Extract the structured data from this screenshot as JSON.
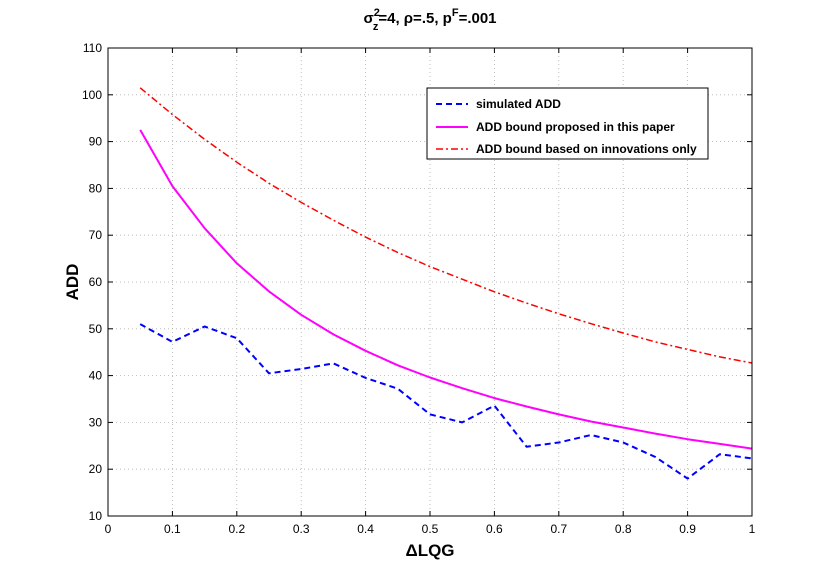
{
  "chart_data": {
    "type": "line",
    "title_parts": {
      "sym": "σ",
      "sup1": "2",
      "sub1": "z",
      "rest1": "=4, ρ=.5, p",
      "sup2": "F",
      "rest2": "=.001"
    },
    "xlabel": "ΔLQG",
    "ylabel": "ADD",
    "xlim": [
      0,
      1
    ],
    "ylim": [
      10,
      110
    ],
    "xticks": [
      "0",
      "0.1",
      "0.2",
      "0.3",
      "0.4",
      "0.5",
      "0.6",
      "0.7",
      "0.8",
      "0.9",
      "1"
    ],
    "yticks": [
      "10",
      "20",
      "30",
      "40",
      "50",
      "60",
      "70",
      "80",
      "90",
      "100",
      "110"
    ],
    "grid": true,
    "legend_position": "top-right",
    "x": [
      0.05,
      0.1,
      0.15,
      0.2,
      0.25,
      0.3,
      0.35,
      0.4,
      0.45,
      0.5,
      0.55,
      0.6,
      0.65,
      0.7,
      0.75,
      0.8,
      0.85,
      0.9,
      0.95,
      1.0
    ],
    "series": [
      {
        "name": "simulated ADD",
        "color": "#0000ff",
        "style": "dashed",
        "values": [
          51,
          47.2,
          50.5,
          48,
          40.5,
          41.4,
          42.6,
          39.5,
          37.2,
          31.7,
          30.0,
          33.6,
          24.8,
          25.7,
          27.3,
          25.7,
          22.6,
          18.0,
          23.2,
          22.3
        ]
      },
      {
        "name": "ADD bound proposed in this paper",
        "color": "#ff00ff",
        "style": "solid",
        "values": [
          92.5,
          80.5,
          71.5,
          64.0,
          58.0,
          53.0,
          48.8,
          45.3,
          42.2,
          39.6,
          37.3,
          35.2,
          33.4,
          31.7,
          30.2,
          28.9,
          27.6,
          26.4,
          25.4,
          24.4
        ]
      },
      {
        "name": "ADD bound based on innovations only",
        "color": "#ff0000",
        "style": "dashdot",
        "values": [
          101.5,
          95.8,
          90.5,
          85.6,
          81.1,
          77.0,
          73.2,
          69.6,
          66.3,
          63.3,
          60.6,
          57.9,
          55.5,
          53.2,
          51.1,
          49.1,
          47.2,
          45.6,
          44.0,
          42.7
        ]
      }
    ]
  }
}
